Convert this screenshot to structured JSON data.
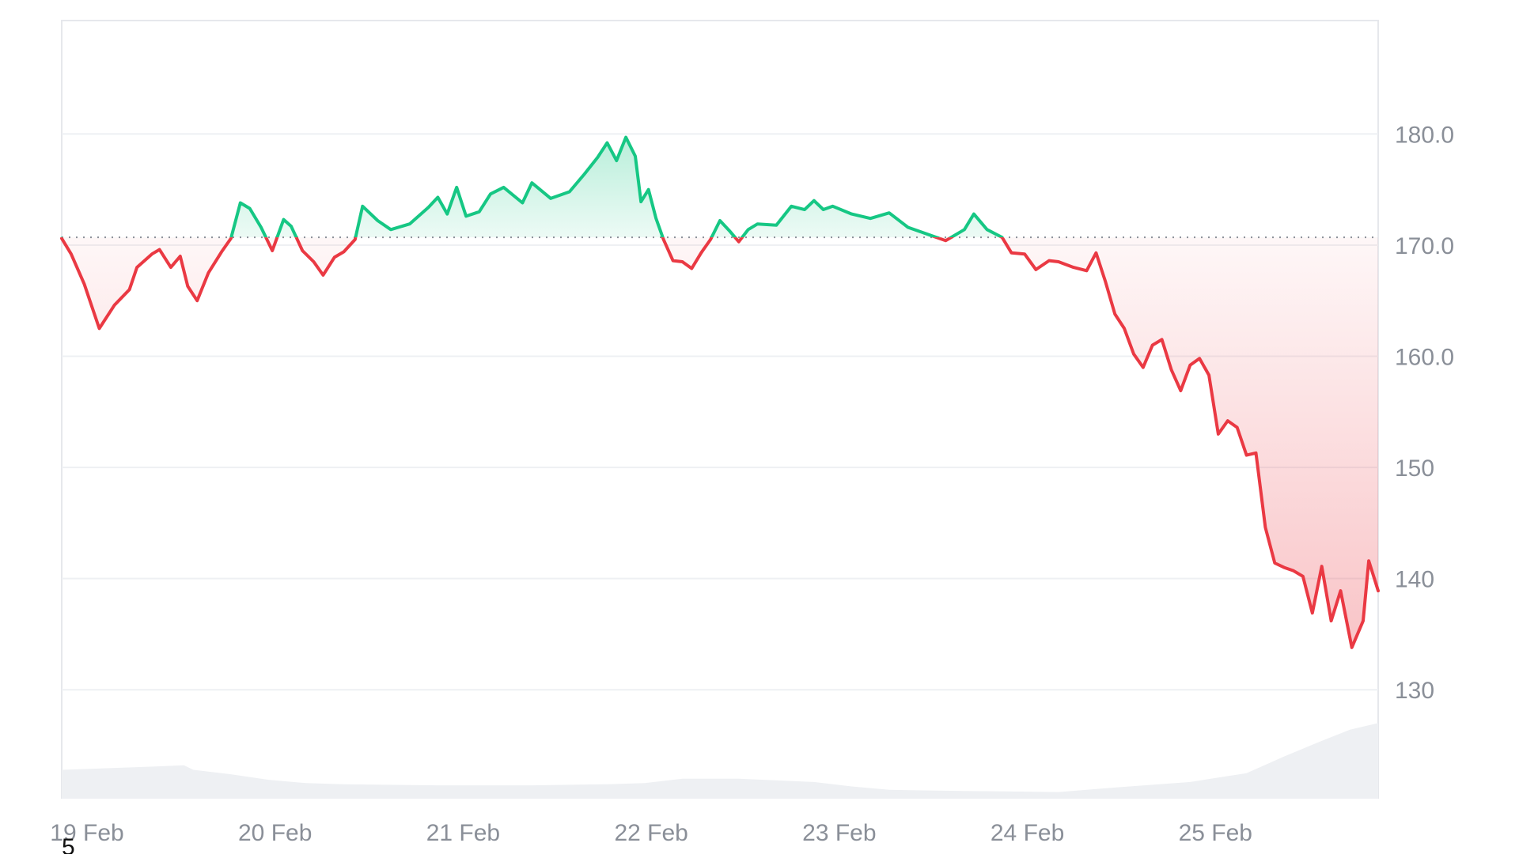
{
  "chart_data": {
    "type": "area",
    "title": "",
    "xlabel": "",
    "ylabel": "",
    "x_tick_labels": [
      "19 Feb",
      "20 Feb",
      "21 Feb",
      "22 Feb",
      "23 Feb",
      "24 Feb",
      "25 Feb"
    ],
    "y_tick_labels": [
      "180.0",
      "170.0",
      "160.0",
      "150",
      "140",
      "130"
    ],
    "y_ticks": [
      180,
      170,
      160,
      150,
      140,
      130
    ],
    "ylim": [
      120.2,
      190.2
    ],
    "xlim_days_from_19_feb": [
      0,
      7.0
    ],
    "baseline": 170.7,
    "grid": true,
    "colors": {
      "up": "#16c784",
      "down": "#ea3943",
      "up_fill": "#16c784",
      "down_fill": "#ea3943",
      "volume": "#eef0f3",
      "grid": "#eef0f3",
      "baseline": "#8a8f98"
    },
    "series": [
      {
        "name": "price",
        "points": [
          [
            0.0,
            170.6
          ],
          [
            0.05,
            169.2
          ],
          [
            0.12,
            166.5
          ],
          [
            0.2,
            162.5
          ],
          [
            0.28,
            164.6
          ],
          [
            0.36,
            166.0
          ],
          [
            0.4,
            168.0
          ],
          [
            0.48,
            169.2
          ],
          [
            0.52,
            169.6
          ],
          [
            0.58,
            168.0
          ],
          [
            0.63,
            169.0
          ],
          [
            0.67,
            166.3
          ],
          [
            0.72,
            165.0
          ],
          [
            0.78,
            167.5
          ],
          [
            0.85,
            169.4
          ],
          [
            0.9,
            170.6
          ],
          [
            0.95,
            173.8
          ],
          [
            1.0,
            173.3
          ],
          [
            1.06,
            171.6
          ],
          [
            1.12,
            169.5
          ],
          [
            1.18,
            172.3
          ],
          [
            1.22,
            171.7
          ],
          [
            1.28,
            169.5
          ],
          [
            1.34,
            168.5
          ],
          [
            1.39,
            167.3
          ],
          [
            1.45,
            168.9
          ],
          [
            1.5,
            169.4
          ],
          [
            1.56,
            170.5
          ],
          [
            1.6,
            173.5
          ],
          [
            1.68,
            172.2
          ],
          [
            1.75,
            171.4
          ],
          [
            1.85,
            171.9
          ],
          [
            1.95,
            173.4
          ],
          [
            2.0,
            174.3
          ],
          [
            2.05,
            172.8
          ],
          [
            2.1,
            175.2
          ],
          [
            2.15,
            172.6
          ],
          [
            2.22,
            173.0
          ],
          [
            2.28,
            174.6
          ],
          [
            2.35,
            175.2
          ],
          [
            2.45,
            173.8
          ],
          [
            2.5,
            175.6
          ],
          [
            2.6,
            174.2
          ],
          [
            2.7,
            174.8
          ],
          [
            2.78,
            176.4
          ],
          [
            2.85,
            177.9
          ],
          [
            2.9,
            179.2
          ],
          [
            2.95,
            177.6
          ],
          [
            3.0,
            179.7
          ],
          [
            3.05,
            178.0
          ],
          [
            3.08,
            173.9
          ],
          [
            3.12,
            175.0
          ],
          [
            3.16,
            172.4
          ],
          [
            3.2,
            170.5
          ],
          [
            3.25,
            168.6
          ],
          [
            3.3,
            168.5
          ],
          [
            3.35,
            167.9
          ],
          [
            3.4,
            169.3
          ],
          [
            3.45,
            170.5
          ],
          [
            3.5,
            172.2
          ],
          [
            3.55,
            171.3
          ],
          [
            3.6,
            170.3
          ],
          [
            3.65,
            171.4
          ],
          [
            3.7,
            171.9
          ],
          [
            3.8,
            171.8
          ],
          [
            3.88,
            173.5
          ],
          [
            3.95,
            173.2
          ],
          [
            4.0,
            174.0
          ],
          [
            4.05,
            173.2
          ],
          [
            4.1,
            173.5
          ],
          [
            4.2,
            172.8
          ],
          [
            4.3,
            172.4
          ],
          [
            4.4,
            172.9
          ],
          [
            4.5,
            171.6
          ],
          [
            4.6,
            171.0
          ],
          [
            4.7,
            170.4
          ],
          [
            4.8,
            171.4
          ],
          [
            4.85,
            172.8
          ],
          [
            4.92,
            171.4
          ],
          [
            5.0,
            170.7
          ],
          [
            5.05,
            169.3
          ],
          [
            5.12,
            169.2
          ],
          [
            5.18,
            167.8
          ],
          [
            5.25,
            168.6
          ],
          [
            5.3,
            168.5
          ],
          [
            5.38,
            168.0
          ],
          [
            5.45,
            167.7
          ],
          [
            5.5,
            169.3
          ],
          [
            5.55,
            166.7
          ],
          [
            5.6,
            163.8
          ],
          [
            5.65,
            162.5
          ],
          [
            5.7,
            160.2
          ],
          [
            5.75,
            159.0
          ],
          [
            5.8,
            161.0
          ],
          [
            5.85,
            161.5
          ],
          [
            5.9,
            158.8
          ],
          [
            5.95,
            156.9
          ],
          [
            6.0,
            159.2
          ],
          [
            6.05,
            159.8
          ],
          [
            6.1,
            158.3
          ],
          [
            6.15,
            153.0
          ],
          [
            6.2,
            154.2
          ],
          [
            6.25,
            153.6
          ],
          [
            6.3,
            151.1
          ],
          [
            6.35,
            151.3
          ],
          [
            6.4,
            144.6
          ],
          [
            6.45,
            141.4
          ],
          [
            6.5,
            141.0
          ],
          [
            6.55,
            140.7
          ],
          [
            6.6,
            140.2
          ],
          [
            6.65,
            136.9
          ],
          [
            6.7,
            141.1
          ],
          [
            6.75,
            136.2
          ],
          [
            6.8,
            138.9
          ],
          [
            6.86,
            133.8
          ],
          [
            6.92,
            136.2
          ],
          [
            6.95,
            141.6
          ],
          [
            7.0,
            138.9
          ]
        ]
      },
      {
        "name": "volume",
        "points": [
          [
            0.0,
            122.8
          ],
          [
            0.5,
            123.1
          ],
          [
            0.65,
            123.2
          ],
          [
            0.7,
            122.8
          ],
          [
            0.9,
            122.4
          ],
          [
            1.1,
            121.9
          ],
          [
            1.3,
            121.6
          ],
          [
            1.5,
            121.5
          ],
          [
            2.0,
            121.4
          ],
          [
            2.5,
            121.4
          ],
          [
            2.9,
            121.5
          ],
          [
            3.1,
            121.6
          ],
          [
            3.3,
            122.0
          ],
          [
            3.6,
            122.0
          ],
          [
            4.0,
            121.7
          ],
          [
            4.2,
            121.3
          ],
          [
            4.4,
            121.0
          ],
          [
            4.8,
            120.9
          ],
          [
            5.3,
            120.8
          ],
          [
            5.6,
            121.2
          ],
          [
            6.0,
            121.7
          ],
          [
            6.3,
            122.5
          ],
          [
            6.5,
            124.0
          ],
          [
            6.7,
            125.4
          ],
          [
            6.85,
            126.4
          ],
          [
            7.0,
            127.0
          ]
        ]
      }
    ]
  },
  "footer": {
    "corner_label": "5"
  }
}
